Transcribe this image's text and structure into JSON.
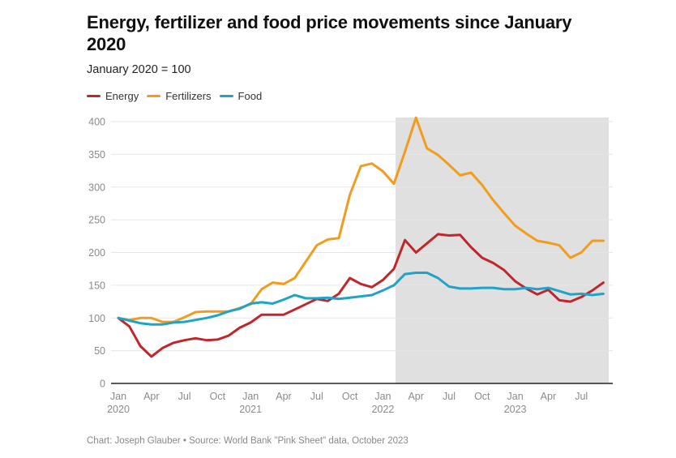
{
  "title": "Energy, fertilizer and food price movements since January 2020",
  "subtitle": "January 2020 = 100",
  "footer": "Chart: Joseph Glauber • Source: World Bank \"Pink Sheet\" data, October 2023",
  "chart_data": {
    "type": "line",
    "title": "Energy, fertilizer and food price movements since January 2020",
    "subtitle": "January 2020 = 100",
    "xlabel": "",
    "ylabel": "",
    "ylim": [
      0,
      400
    ],
    "yticks": [
      0,
      50,
      100,
      150,
      200,
      250,
      300,
      350,
      400
    ],
    "grid": true,
    "legend_position": "top-left",
    "x_start": "Jan 2020",
    "x_end": "Sep 2023",
    "x_months": 45,
    "xticks": [
      {
        "month_index": 0,
        "label": "Jan",
        "year": "2020"
      },
      {
        "month_index": 3,
        "label": "Apr",
        "year": ""
      },
      {
        "month_index": 6,
        "label": "Jul",
        "year": ""
      },
      {
        "month_index": 9,
        "label": "Oct",
        "year": ""
      },
      {
        "month_index": 12,
        "label": "Jan",
        "year": "2021"
      },
      {
        "month_index": 15,
        "label": "Apr",
        "year": ""
      },
      {
        "month_index": 18,
        "label": "Jul",
        "year": ""
      },
      {
        "month_index": 21,
        "label": "Oct",
        "year": ""
      },
      {
        "month_index": 24,
        "label": "Jan",
        "year": "2022"
      },
      {
        "month_index": 27,
        "label": "Apr",
        "year": ""
      },
      {
        "month_index": 30,
        "label": "Jul",
        "year": ""
      },
      {
        "month_index": 33,
        "label": "Oct",
        "year": ""
      },
      {
        "month_index": 36,
        "label": "Jan",
        "year": "2023"
      },
      {
        "month_index": 39,
        "label": "Apr",
        "year": ""
      },
      {
        "month_index": 42,
        "label": "Jul",
        "year": ""
      }
    ],
    "shaded_region": {
      "from": "Feb 2022",
      "to": "Sep 2023",
      "from_index": 25,
      "to_index": 44,
      "color": "#e0e0e0"
    },
    "series": [
      {
        "name": "Energy",
        "color": "#c0272d",
        "values": [
          100,
          87,
          57,
          41,
          54,
          62,
          66,
          69,
          66,
          67,
          73,
          85,
          93,
          105,
          105,
          105,
          113,
          121,
          129,
          126,
          137,
          161,
          152,
          147,
          158,
          175,
          219,
          200,
          214,
          228,
          226,
          227,
          208,
          192,
          184,
          173,
          156,
          145,
          136,
          143,
          127,
          125,
          132,
          142,
          154
        ]
      },
      {
        "name": "Fertilizers",
        "color": "#f29c1f",
        "values": [
          100,
          97,
          100,
          100,
          94,
          94,
          101,
          109,
          110,
          110,
          110,
          115,
          121,
          144,
          154,
          152,
          161,
          186,
          211,
          220,
          222,
          288,
          332,
          336,
          324,
          305,
          354,
          406,
          359,
          349,
          334,
          318,
          322,
          303,
          280,
          260,
          241,
          229,
          218,
          215,
          211,
          192,
          200,
          218,
          218
        ]
      },
      {
        "name": "Food",
        "color": "#1fa3c6",
        "values": [
          100,
          96,
          92,
          90,
          90,
          93,
          94,
          97,
          100,
          104,
          110,
          114,
          122,
          124,
          122,
          128,
          135,
          130,
          130,
          131,
          129,
          131,
          133,
          135,
          142,
          150,
          167,
          169,
          169,
          161,
          148,
          145,
          145,
          146,
          146,
          144,
          144,
          146,
          144,
          146,
          141,
          136,
          137,
          135,
          137
        ]
      }
    ]
  }
}
